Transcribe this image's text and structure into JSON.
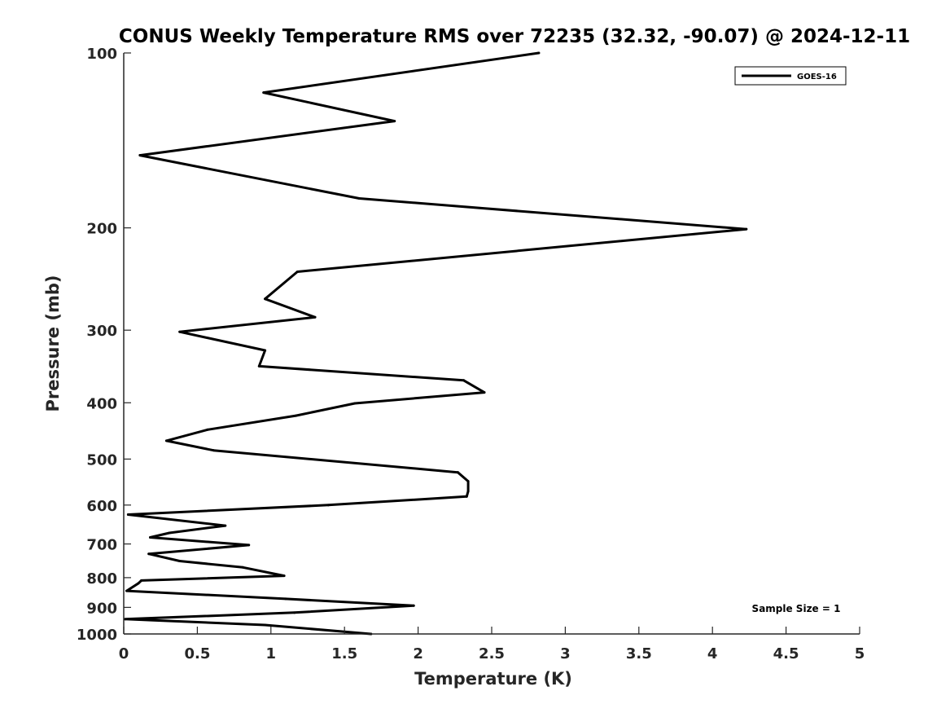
{
  "chart_data": {
    "type": "line",
    "title": "CONUS Weekly Temperature RMS over 72235 (32.32, -90.07) @ 2024-12-11",
    "xlabel": "Temperature (K)",
    "ylabel": "Pressure (mb)",
    "xlim": [
      0,
      5
    ],
    "ylim": [
      1000,
      100
    ],
    "y_scale": "log",
    "x_ticks": [
      "0",
      "0.5",
      "1",
      "1.5",
      "2",
      "2.5",
      "3",
      "3.5",
      "4",
      "4.5",
      "5"
    ],
    "y_ticks": [
      "100",
      "200",
      "300",
      "400",
      "500",
      "600",
      "700",
      "800",
      "900",
      "1000"
    ],
    "grid": false,
    "legend_position": "top-right",
    "annotation": "Sample Size = 1",
    "series": [
      {
        "name": "GOES-16",
        "color": "#000000",
        "x": [
          2.82,
          0.95,
          1.84,
          0.11,
          1.6,
          4.23,
          1.18,
          0.96,
          1.3,
          0.38,
          0.96,
          0.92,
          2.31,
          2.45,
          1.57,
          1.17,
          0.57,
          0.29,
          0.61,
          2.27,
          2.34,
          2.34,
          2.33,
          1.39,
          0.03,
          0.69,
          0.31,
          0.18,
          0.85,
          0.17,
          0.38,
          0.81,
          1.09,
          0.12,
          0.1,
          0.02,
          1.1,
          1.97,
          1.16,
          0.01,
          0.96,
          1.68
        ],
        "y": [
          100,
          117,
          131,
          150,
          178,
          201,
          238,
          265,
          285,
          302,
          325,
          346,
          366,
          384,
          401,
          421,
          445,
          465,
          483,
          527,
          546,
          568,
          580,
          600,
          623,
          651,
          670,
          682,
          703,
          728,
          749,
          768,
          794,
          809,
          818,
          843,
          870,
          894,
          919,
          943,
          965,
          1000
        ]
      }
    ]
  }
}
